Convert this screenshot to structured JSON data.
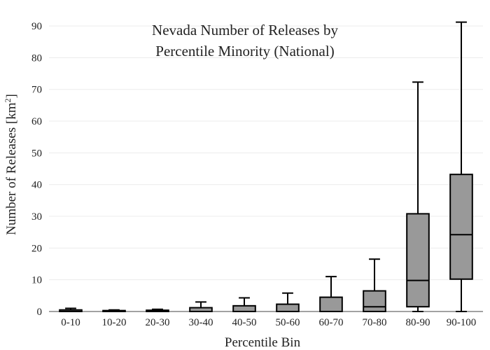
{
  "chart_data": {
    "type": "box",
    "title_lines": [
      "Nevada Number of Releases by",
      "Percentile Minority (National)"
    ],
    "xlabel": "Percentile Bin",
    "ylabel_main": "Number of Releases  [km",
    "ylabel_sup": "2",
    "ylabel_end": "]",
    "ylim": [
      0,
      92
    ],
    "yticks": [
      0,
      10,
      20,
      30,
      40,
      50,
      60,
      70,
      80,
      90
    ],
    "ytick_labels": [
      "0",
      "10",
      "20",
      "30",
      "40",
      "50",
      "60",
      "70",
      "80",
      "90"
    ],
    "grid": true,
    "box_color": "#999999",
    "categories": [
      "0-10",
      "10-20",
      "20-30",
      "30-40",
      "40-50",
      "50-60",
      "60-70",
      "70-80",
      "80-90",
      "90-100"
    ],
    "boxes": [
      {
        "min": 0,
        "q1": 0,
        "median": 0,
        "q3": 0.5,
        "max": 1
      },
      {
        "min": 0,
        "q1": 0,
        "median": 0,
        "q3": 0.3,
        "max": 0.5
      },
      {
        "min": 0,
        "q1": 0,
        "median": 0,
        "q3": 0.4,
        "max": 0.7
      },
      {
        "min": 0,
        "q1": 0,
        "median": 0,
        "q3": 1.2,
        "max": 3
      },
      {
        "min": 0,
        "q1": 0,
        "median": 0,
        "q3": 1.8,
        "max": 4.3
      },
      {
        "min": 0,
        "q1": 0,
        "median": 0,
        "q3": 2.3,
        "max": 5.8
      },
      {
        "min": 0,
        "q1": 0,
        "median": 0,
        "q3": 4.5,
        "max": 11
      },
      {
        "min": 0,
        "q1": 0,
        "median": 1.5,
        "q3": 6.5,
        "max": 16.5
      },
      {
        "min": 0,
        "q1": 1.5,
        "median": 9.8,
        "q3": 30.8,
        "max": 72.3
      },
      {
        "min": 0,
        "q1": 10.2,
        "median": 24.2,
        "q3": 43.2,
        "max": 91.2
      }
    ]
  }
}
